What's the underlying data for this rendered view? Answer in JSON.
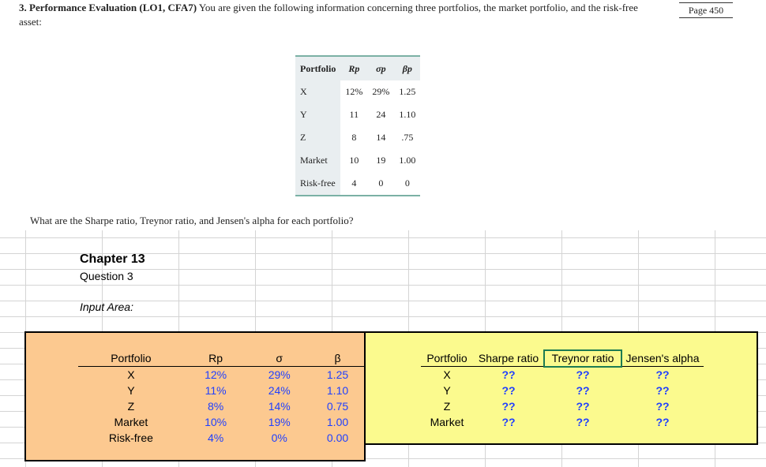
{
  "textbook": {
    "question_number": "3.",
    "question_title": "Performance Evaluation (LO1, CFA7)",
    "question_body": "You are given the following information concerning three portfolios, the market portfolio, and the risk-free asset:",
    "page_badge": "Page 450",
    "table_headers": [
      "Portfolio",
      "Rp",
      "σp",
      "βp"
    ],
    "table_rows": [
      [
        "X",
        "12%",
        "29%",
        "1.25"
      ],
      [
        "Y",
        "11",
        "24",
        "1.10"
      ],
      [
        "Z",
        "8",
        "14",
        ".75"
      ],
      [
        "Market",
        "10",
        "19",
        "1.00"
      ],
      [
        "Risk-free",
        "4",
        "0",
        "0"
      ]
    ],
    "question_prompt": "What are the Sharpe ratio, Treynor ratio, and Jensen's alpha for each portfolio?"
  },
  "sheet": {
    "chapter": "Chapter 13",
    "question": "Question 3",
    "input_label": "Input Area:",
    "input_headers": [
      "Portfolio",
      "Rp",
      "σ",
      "β"
    ],
    "input_rows": [
      [
        "X",
        "12%",
        "29%",
        "1.25"
      ],
      [
        "Y",
        "11%",
        "24%",
        "1.10"
      ],
      [
        "Z",
        "8%",
        "14%",
        "0.75"
      ],
      [
        "Market",
        "10%",
        "19%",
        "1.00"
      ],
      [
        "Risk-free",
        "4%",
        "0%",
        "0.00"
      ]
    ],
    "output_headers": [
      "Portfolio",
      "Sharpe ratio",
      "Treynor ratio",
      "Jensen's alpha"
    ],
    "output_rows": [
      [
        "X",
        "??",
        "??",
        "??"
      ],
      [
        "Y",
        "??",
        "??",
        "??"
      ],
      [
        "Z",
        "??",
        "??",
        "??"
      ],
      [
        "Market",
        "??",
        "??",
        "??"
      ]
    ]
  }
}
